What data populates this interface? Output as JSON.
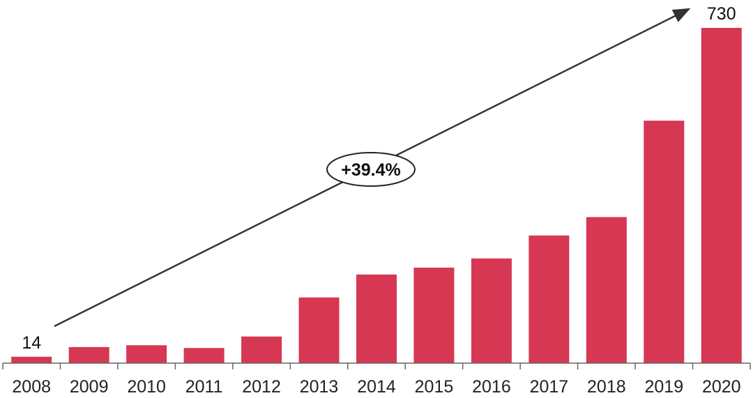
{
  "chart_data": {
    "type": "bar",
    "categories": [
      "2008",
      "2009",
      "2010",
      "2011",
      "2012",
      "2013",
      "2014",
      "2015",
      "2016",
      "2017",
      "2018",
      "2019",
      "2020"
    ],
    "values": [
      14,
      35,
      39,
      33,
      58,
      143,
      193,
      208,
      228,
      278,
      318,
      528,
      730
    ],
    "title": "",
    "xlabel": "",
    "ylabel": "",
    "ylim": [
      0,
      730
    ],
    "grid": false,
    "data_labels": [
      {
        "category": "2008",
        "text": "14"
      },
      {
        "category": "2020",
        "text": "730"
      }
    ],
    "annotation": {
      "type": "growth-arrow",
      "from": "2008",
      "to": "2020",
      "text": "+39.4%"
    },
    "colors": {
      "bar": "#d63853",
      "axis": "#666666",
      "arrow": "#333333"
    }
  }
}
